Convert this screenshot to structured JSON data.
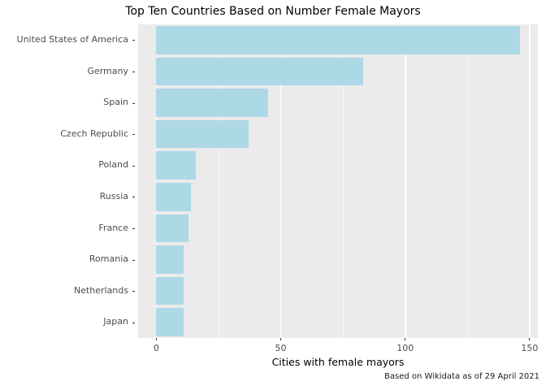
{
  "chart_data": {
    "type": "bar",
    "orientation": "horizontal",
    "title": "Top Ten Countries Based on Number Female Mayors",
    "categories": [
      "United States of America",
      "Germany",
      "Spain",
      "Czech Republic",
      "Poland",
      "Russia",
      "France",
      "Romania",
      "Netherlands",
      "Japan"
    ],
    "values": [
      146,
      83,
      45,
      37,
      16,
      14,
      13,
      11,
      11,
      11
    ],
    "xlabel": "Cities with female mayors",
    "caption": "Based on Wikidata as of 29 April 2021",
    "xlim": [
      0,
      150
    ],
    "xticks": [
      0,
      50,
      100,
      150
    ],
    "xticks_minor": [
      25,
      75,
      125
    ],
    "grid": true,
    "legend": "none",
    "bar_color": "#ADD8E6",
    "panel_bg": "#EBEBEB",
    "grid_color": "#FFFFFF",
    "text_color": "#4D4D4D",
    "tick_color": "#333333"
  }
}
